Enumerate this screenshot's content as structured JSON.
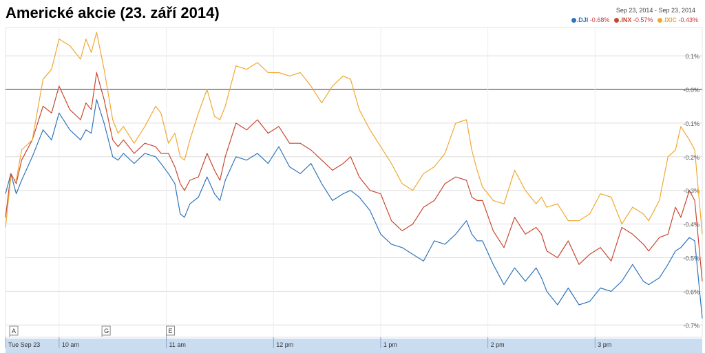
{
  "title": "Americké akcie (23. září 2014)",
  "date_range": {
    "from": "Sep 23, 2014",
    "sep": "-",
    "to": "Sep 23, 2014"
  },
  "colors": {
    "DJI": "#2f74bb",
    "INX": "#c8462e",
    "IXIC": "#f0a830",
    "zero_line": "#333333",
    "grid": "#dddddd",
    "axis_bar": "#c9dcf0"
  },
  "legend": [
    {
      "name": ".DJI",
      "change": "-0.68%",
      "color": "#2f74bb"
    },
    {
      "name": ".INX",
      "change": "-0.57%",
      "color": "#c8462e"
    },
    {
      "name": ".IXIC",
      "change": "-0.43%",
      "color": "#f0a830"
    }
  ],
  "markers": [
    "A",
    "G",
    "E"
  ],
  "chart_data": {
    "type": "line",
    "title": "Americké akcie (23. září 2014)",
    "xlabel": "",
    "ylabel": "",
    "x_unit": "time (ET)",
    "x_range": [
      "9:30",
      "16:00"
    ],
    "x_ticks": [
      {
        "t": 9.5,
        "label": "Tue Sep 23"
      },
      {
        "t": 10,
        "label": "10 am"
      },
      {
        "t": 11,
        "label": "11 am"
      },
      {
        "t": 12,
        "label": "12 pm"
      },
      {
        "t": 13,
        "label": "1 pm"
      },
      {
        "t": 14,
        "label": "2 pm"
      },
      {
        "t": 15,
        "label": "3 pm"
      }
    ],
    "y_unit": "%",
    "ylim": [
      -0.72,
      0.24
    ],
    "y_ticks": [
      {
        "v": 0.1,
        "label": "0.1%"
      },
      {
        "v": 0.0,
        "label": "-0.0%"
      },
      {
        "v": -0.1,
        "label": "-0.1%"
      },
      {
        "v": -0.2,
        "label": "-0.2%"
      },
      {
        "v": -0.3,
        "label": "-0.3%"
      },
      {
        "v": -0.4,
        "label": "-0.4%"
      },
      {
        "v": -0.5,
        "label": "-0.5%"
      },
      {
        "v": -0.6,
        "label": "-0.6%"
      },
      {
        "v": -0.7,
        "label": "-0.7%"
      }
    ],
    "grid": true,
    "legend_position": "top-right",
    "annotations": [
      {
        "t": 9.5,
        "label": "A"
      },
      {
        "t": 10.4,
        "label": "G"
      },
      {
        "t": 11.0,
        "label": "E"
      }
    ],
    "series": [
      {
        "name": ".DJI",
        "color": "#2f74bb",
        "x": [
          9.5,
          9.55,
          9.6,
          9.65,
          9.75,
          9.85,
          9.93,
          10.0,
          10.1,
          10.2,
          10.25,
          10.3,
          10.35,
          10.42,
          10.5,
          10.55,
          10.6,
          10.7,
          10.8,
          10.9,
          10.95,
          11.02,
          11.08,
          11.13,
          11.17,
          11.22,
          11.3,
          11.38,
          11.45,
          11.5,
          11.55,
          11.65,
          11.75,
          11.85,
          11.95,
          12.05,
          12.15,
          12.25,
          12.35,
          12.45,
          12.55,
          12.65,
          12.72,
          12.8,
          12.9,
          13.0,
          13.1,
          13.2,
          13.3,
          13.4,
          13.5,
          13.6,
          13.7,
          13.8,
          13.85,
          13.9,
          13.95,
          14.05,
          14.15,
          14.25,
          14.35,
          14.45,
          14.5,
          14.55,
          14.65,
          14.75,
          14.85,
          14.95,
          15.05,
          15.15,
          15.25,
          15.35,
          15.45,
          15.5,
          15.6,
          15.68,
          15.75,
          15.8,
          15.88,
          15.93,
          16.0
        ],
        "y": [
          -0.31,
          -0.25,
          -0.31,
          -0.27,
          -0.2,
          -0.12,
          -0.15,
          -0.07,
          -0.12,
          -0.15,
          -0.12,
          -0.13,
          -0.03,
          -0.1,
          -0.2,
          -0.21,
          -0.19,
          -0.22,
          -0.19,
          -0.2,
          -0.22,
          -0.25,
          -0.28,
          -0.37,
          -0.38,
          -0.34,
          -0.32,
          -0.26,
          -0.31,
          -0.33,
          -0.27,
          -0.2,
          -0.21,
          -0.19,
          -0.22,
          -0.17,
          -0.23,
          -0.25,
          -0.22,
          -0.28,
          -0.33,
          -0.31,
          -0.3,
          -0.32,
          -0.36,
          -0.43,
          -0.46,
          -0.47,
          -0.49,
          -0.51,
          -0.45,
          -0.46,
          -0.43,
          -0.39,
          -0.43,
          -0.45,
          -0.45,
          -0.52,
          -0.58,
          -0.53,
          -0.57,
          -0.53,
          -0.56,
          -0.6,
          -0.64,
          -0.59,
          -0.64,
          -0.63,
          -0.59,
          -0.6,
          -0.57,
          -0.52,
          -0.57,
          -0.58,
          -0.56,
          -0.52,
          -0.48,
          -0.47,
          -0.44,
          -0.45,
          -0.68
        ]
      },
      {
        "name": ".INX",
        "color": "#c8462e",
        "x": [
          9.5,
          9.55,
          9.6,
          9.65,
          9.75,
          9.85,
          9.93,
          10.0,
          10.1,
          10.2,
          10.25,
          10.3,
          10.35,
          10.42,
          10.5,
          10.55,
          10.6,
          10.7,
          10.8,
          10.9,
          10.95,
          11.02,
          11.08,
          11.13,
          11.17,
          11.22,
          11.3,
          11.38,
          11.45,
          11.5,
          11.55,
          11.65,
          11.75,
          11.85,
          11.95,
          12.05,
          12.15,
          12.25,
          12.35,
          12.45,
          12.55,
          12.65,
          12.72,
          12.8,
          12.9,
          13.0,
          13.1,
          13.2,
          13.3,
          13.4,
          13.5,
          13.6,
          13.7,
          13.8,
          13.85,
          13.9,
          13.95,
          14.05,
          14.15,
          14.25,
          14.35,
          14.45,
          14.5,
          14.55,
          14.65,
          14.75,
          14.85,
          14.95,
          15.05,
          15.15,
          15.25,
          15.35,
          15.45,
          15.5,
          15.6,
          15.68,
          15.75,
          15.8,
          15.88,
          15.93,
          16.0
        ],
        "y": [
          -0.38,
          -0.25,
          -0.28,
          -0.21,
          -0.15,
          -0.05,
          -0.07,
          0.01,
          -0.06,
          -0.09,
          -0.04,
          -0.06,
          0.05,
          -0.03,
          -0.15,
          -0.17,
          -0.15,
          -0.19,
          -0.16,
          -0.17,
          -0.19,
          -0.19,
          -0.23,
          -0.28,
          -0.3,
          -0.27,
          -0.26,
          -0.19,
          -0.24,
          -0.27,
          -0.2,
          -0.1,
          -0.12,
          -0.09,
          -0.13,
          -0.11,
          -0.16,
          -0.16,
          -0.18,
          -0.21,
          -0.24,
          -0.22,
          -0.2,
          -0.26,
          -0.3,
          -0.31,
          -0.39,
          -0.42,
          -0.4,
          -0.35,
          -0.33,
          -0.28,
          -0.26,
          -0.27,
          -0.32,
          -0.33,
          -0.33,
          -0.42,
          -0.47,
          -0.38,
          -0.43,
          -0.41,
          -0.43,
          -0.48,
          -0.5,
          -0.45,
          -0.52,
          -0.49,
          -0.47,
          -0.51,
          -0.41,
          -0.43,
          -0.46,
          -0.48,
          -0.44,
          -0.43,
          -0.35,
          -0.38,
          -0.3,
          -0.33,
          -0.57
        ]
      },
      {
        "name": ".IXIC",
        "color": "#f0a830",
        "x": [
          9.5,
          9.55,
          9.6,
          9.65,
          9.75,
          9.85,
          9.93,
          10.0,
          10.1,
          10.2,
          10.25,
          10.3,
          10.35,
          10.42,
          10.5,
          10.55,
          10.6,
          10.7,
          10.8,
          10.9,
          10.95,
          11.02,
          11.08,
          11.13,
          11.17,
          11.22,
          11.3,
          11.38,
          11.45,
          11.5,
          11.55,
          11.65,
          11.75,
          11.85,
          11.95,
          12.05,
          12.15,
          12.25,
          12.35,
          12.45,
          12.55,
          12.65,
          12.72,
          12.8,
          12.9,
          13.0,
          13.1,
          13.2,
          13.3,
          13.4,
          13.5,
          13.6,
          13.7,
          13.8,
          13.85,
          13.9,
          13.95,
          14.05,
          14.15,
          14.25,
          14.35,
          14.45,
          14.5,
          14.55,
          14.65,
          14.75,
          14.85,
          14.95,
          15.05,
          15.15,
          15.25,
          15.35,
          15.45,
          15.5,
          15.6,
          15.68,
          15.75,
          15.8,
          15.88,
          15.93,
          16.0
        ],
        "y": [
          -0.41,
          -0.26,
          -0.27,
          -0.18,
          -0.15,
          0.03,
          0.06,
          0.15,
          0.13,
          0.09,
          0.15,
          0.11,
          0.17,
          0.06,
          -0.09,
          -0.13,
          -0.11,
          -0.16,
          -0.11,
          -0.05,
          -0.07,
          -0.16,
          -0.13,
          -0.2,
          -0.21,
          -0.15,
          -0.07,
          0.0,
          -0.08,
          -0.09,
          -0.05,
          0.07,
          0.06,
          0.08,
          0.05,
          0.05,
          0.04,
          0.05,
          0.01,
          -0.04,
          0.01,
          0.04,
          0.03,
          -0.06,
          -0.12,
          -0.17,
          -0.22,
          -0.28,
          -0.3,
          -0.25,
          -0.23,
          -0.19,
          -0.1,
          -0.09,
          -0.18,
          -0.24,
          -0.29,
          -0.33,
          -0.34,
          -0.24,
          -0.3,
          -0.34,
          -0.32,
          -0.35,
          -0.34,
          -0.39,
          -0.39,
          -0.37,
          -0.31,
          -0.32,
          -0.4,
          -0.35,
          -0.37,
          -0.39,
          -0.33,
          -0.2,
          -0.18,
          -0.11,
          -0.15,
          -0.18,
          -0.43
        ]
      }
    ]
  }
}
